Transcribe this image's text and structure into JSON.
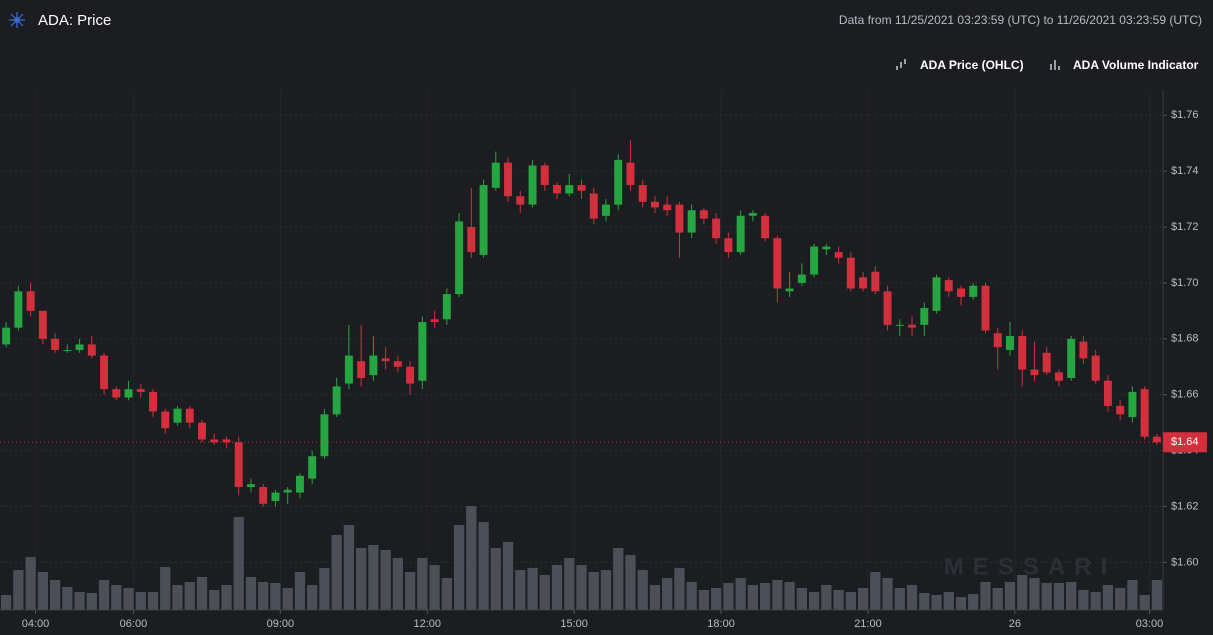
{
  "chart_data": {
    "type": "candlestick",
    "title": "ADA: Price",
    "subtitle": "Data from 11/25/2021 03:23:59 (UTC) to 11/26/2021 03:23:59 (UTC)",
    "watermark": "MESSARI",
    "series": [
      {
        "name": "ADA Price (OHLC)",
        "up_color": "#26a641",
        "down_color": "#d3303e"
      },
      {
        "name": "ADA Volume Indicator",
        "color": "#4b5058"
      }
    ],
    "open": [
      1.678,
      1.684,
      1.697,
      1.69,
      1.68,
      1.676,
      1.676,
      1.678,
      1.674,
      1.662,
      1.659,
      1.662,
      1.661,
      1.654,
      1.65,
      1.655,
      1.65,
      1.644,
      1.644,
      1.643,
      1.627,
      1.627,
      1.622,
      1.625,
      1.625,
      1.63,
      1.638,
      1.653,
      1.664,
      1.672,
      1.667,
      1.673,
      1.672,
      1.67,
      1.665,
      1.687,
      1.687,
      1.696,
      1.72,
      1.71,
      1.734,
      1.743,
      1.731,
      1.728,
      1.742,
      1.735,
      1.732,
      1.735,
      1.732,
      1.724,
      1.728,
      1.743,
      1.735,
      1.729,
      1.728,
      1.728,
      1.718,
      1.726,
      1.723,
      1.716,
      1.711,
      1.724,
      1.724,
      1.716,
      1.697,
      1.7,
      1.703,
      1.712,
      1.711,
      1.709,
      1.702,
      1.704,
      1.697,
      1.685,
      1.685,
      1.685,
      1.69,
      1.701,
      1.698,
      1.695,
      1.699,
      1.682,
      1.676,
      1.681,
      1.669,
      1.675,
      1.668,
      1.666,
      1.679,
      1.674,
      1.665,
      1.656,
      1.652,
      1.662,
      1.645
    ],
    "high": [
      1.686,
      1.699,
      1.7,
      1.69,
      1.682,
      1.678,
      1.68,
      1.681,
      1.675,
      1.663,
      1.665,
      1.664,
      1.662,
      1.655,
      1.656,
      1.656,
      1.651,
      1.646,
      1.645,
      1.645,
      1.63,
      1.628,
      1.626,
      1.627,
      1.632,
      1.64,
      1.655,
      1.666,
      1.685,
      1.685,
      1.681,
      1.677,
      1.674,
      1.672,
      1.688,
      1.69,
      1.698,
      1.725,
      1.734,
      1.737,
      1.747,
      1.745,
      1.733,
      1.744,
      1.743,
      1.736,
      1.739,
      1.737,
      1.734,
      1.73,
      1.746,
      1.751,
      1.737,
      1.731,
      1.731,
      1.729,
      1.728,
      1.727,
      1.725,
      1.718,
      1.726,
      1.726,
      1.725,
      1.717,
      1.704,
      1.707,
      1.714,
      1.714,
      1.713,
      1.711,
      1.704,
      1.706,
      1.699,
      1.687,
      1.688,
      1.693,
      1.703,
      1.702,
      1.699,
      1.7,
      1.7,
      1.684,
      1.686,
      1.683,
      1.679,
      1.677,
      1.669,
      1.681,
      1.681,
      1.676,
      1.667,
      1.658,
      1.663,
      1.663,
      1.646
    ],
    "low": [
      1.677,
      1.683,
      1.688,
      1.678,
      1.675,
      1.675,
      1.675,
      1.673,
      1.66,
      1.658,
      1.658,
      1.659,
      1.652,
      1.646,
      1.649,
      1.648,
      1.643,
      1.642,
      1.641,
      1.624,
      1.625,
      1.62,
      1.62,
      1.621,
      1.623,
      1.628,
      1.637,
      1.652,
      1.662,
      1.663,
      1.665,
      1.669,
      1.668,
      1.66,
      1.662,
      1.684,
      1.685,
      1.695,
      1.709,
      1.709,
      1.733,
      1.729,
      1.725,
      1.727,
      1.733,
      1.73,
      1.731,
      1.73,
      1.721,
      1.722,
      1.726,
      1.733,
      1.727,
      1.725,
      1.724,
      1.709,
      1.716,
      1.721,
      1.714,
      1.709,
      1.71,
      1.722,
      1.715,
      1.693,
      1.695,
      1.699,
      1.702,
      1.71,
      1.707,
      1.697,
      1.697,
      1.696,
      1.683,
      1.681,
      1.681,
      1.681,
      1.689,
      1.695,
      1.692,
      1.694,
      1.682,
      1.669,
      1.674,
      1.663,
      1.665,
      1.667,
      1.663,
      1.665,
      1.671,
      1.664,
      1.654,
      1.651,
      1.65,
      1.644,
      1.642
    ],
    "close": [
      1.684,
      1.697,
      1.69,
      1.68,
      1.676,
      1.676,
      1.678,
      1.674,
      1.662,
      1.659,
      1.662,
      1.661,
      1.654,
      1.648,
      1.655,
      1.65,
      1.644,
      1.643,
      1.643,
      1.627,
      1.628,
      1.621,
      1.625,
      1.626,
      1.631,
      1.638,
      1.653,
      1.663,
      1.674,
      1.666,
      1.674,
      1.672,
      1.67,
      1.664,
      1.686,
      1.686,
      1.696,
      1.722,
      1.711,
      1.735,
      1.743,
      1.731,
      1.728,
      1.742,
      1.735,
      1.732,
      1.735,
      1.733,
      1.723,
      1.728,
      1.744,
      1.735,
      1.729,
      1.727,
      1.726,
      1.718,
      1.726,
      1.723,
      1.716,
      1.711,
      1.724,
      1.725,
      1.716,
      1.698,
      1.698,
      1.703,
      1.713,
      1.713,
      1.709,
      1.698,
      1.698,
      1.697,
      1.685,
      1.685,
      1.684,
      1.691,
      1.702,
      1.697,
      1.695,
      1.699,
      1.683,
      1.677,
      1.681,
      1.669,
      1.667,
      1.668,
      1.665,
      1.68,
      1.673,
      1.665,
      1.656,
      1.653,
      1.661,
      1.645,
      1.643
    ],
    "volume": [
      15,
      40,
      53,
      38,
      30,
      23,
      18,
      17,
      30,
      25,
      22,
      18,
      18,
      43,
      25,
      28,
      33,
      20,
      25,
      93,
      33,
      28,
      27,
      22,
      38,
      25,
      42,
      75,
      85,
      62,
      65,
      60,
      52,
      38,
      52,
      45,
      32,
      85,
      104,
      88,
      62,
      68,
      40,
      42,
      35,
      45,
      52,
      45,
      38,
      40,
      62,
      55,
      40,
      25,
      32,
      42,
      28,
      20,
      22,
      27,
      32,
      25,
      27,
      30,
      28,
      22,
      18,
      25,
      20,
      18,
      22,
      38,
      32,
      22,
      25,
      17,
      15,
      18,
      13,
      16,
      28,
      22,
      28,
      35,
      32,
      27,
      27,
      28,
      20,
      18,
      25,
      22,
      30,
      15,
      30
    ],
    "vlim": [
      0,
      160
    ],
    "xlim": [
      -0.5,
      94.5
    ],
    "xticks": [
      {
        "value": 2.4,
        "label": "04:00"
      },
      {
        "value": 10.4,
        "label": "06:00"
      },
      {
        "value": 22.4,
        "label": "09:00"
      },
      {
        "value": 34.4,
        "label": "12:00"
      },
      {
        "value": 46.4,
        "label": "15:00"
      },
      {
        "value": 58.4,
        "label": "18:00"
      },
      {
        "value": 70.4,
        "label": "21:00"
      },
      {
        "value": 82.4,
        "label": "26"
      },
      {
        "value": 93.4,
        "label": "03:00"
      }
    ],
    "ylim": [
      1.583,
      1.769
    ],
    "yticks": [
      {
        "value": 1.6,
        "label": "$1.60"
      },
      {
        "value": 1.62,
        "label": "$1.62"
      },
      {
        "value": 1.64,
        "label": "$1.64"
      },
      {
        "value": 1.66,
        "label": "$1.66"
      },
      {
        "value": 1.68,
        "label": "$1.68"
      },
      {
        "value": 1.7,
        "label": "$1.70"
      },
      {
        "value": 1.72,
        "label": "$1.72"
      },
      {
        "value": 1.74,
        "label": "$1.74"
      },
      {
        "value": 1.76,
        "label": "$1.76"
      }
    ],
    "last_price": {
      "value": 1.643,
      "label": "$1.64"
    },
    "grid": true
  }
}
